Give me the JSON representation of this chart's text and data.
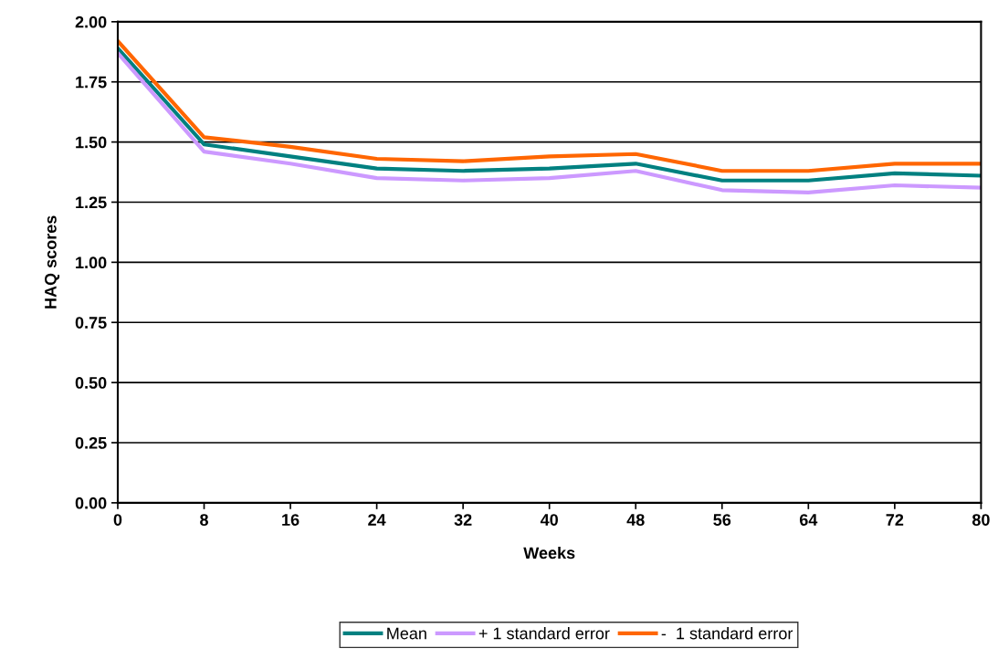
{
  "chart_data": {
    "type": "line",
    "xlabel": "Weeks",
    "ylabel": "HAQ scores",
    "x": [
      0,
      8,
      16,
      24,
      32,
      40,
      48,
      56,
      64,
      72,
      80
    ],
    "series": [
      {
        "name": "Mean",
        "color": "#008080",
        "values": [
          1.89,
          1.49,
          1.44,
          1.39,
          1.38,
          1.39,
          1.41,
          1.34,
          1.34,
          1.37,
          1.36
        ]
      },
      {
        "name": "+ 1 standard error",
        "color": "#cc99ff",
        "values": [
          1.87,
          1.46,
          1.41,
          1.35,
          1.34,
          1.35,
          1.38,
          1.3,
          1.29,
          1.32,
          1.31
        ]
      },
      {
        "name": "-  1 standard error",
        "color": "#ff6600",
        "values": [
          1.92,
          1.52,
          1.48,
          1.43,
          1.42,
          1.44,
          1.45,
          1.38,
          1.38,
          1.41,
          1.41
        ]
      }
    ],
    "xlim": [
      0,
      80
    ],
    "xticks": [
      0,
      8,
      16,
      24,
      32,
      40,
      48,
      56,
      64,
      72,
      80
    ],
    "ylim": [
      0,
      2
    ],
    "yticks": [
      {
        "value": 0,
        "label": "0.00"
      },
      {
        "value": 0.25,
        "label": "0.25"
      },
      {
        "value": 0.5,
        "label": "0.50"
      },
      {
        "value": 0.75,
        "label": "0.75"
      },
      {
        "value": 1,
        "label": "1.00"
      },
      {
        "value": 1.25,
        "label": "1.25"
      },
      {
        "value": 1.5,
        "label": "1.50"
      },
      {
        "value": 1.75,
        "label": "1.75"
      },
      {
        "value": 2,
        "label": "2.00"
      }
    ],
    "grid": "y",
    "legend": "bottom",
    "marker": "none",
    "line_style": "solid"
  }
}
